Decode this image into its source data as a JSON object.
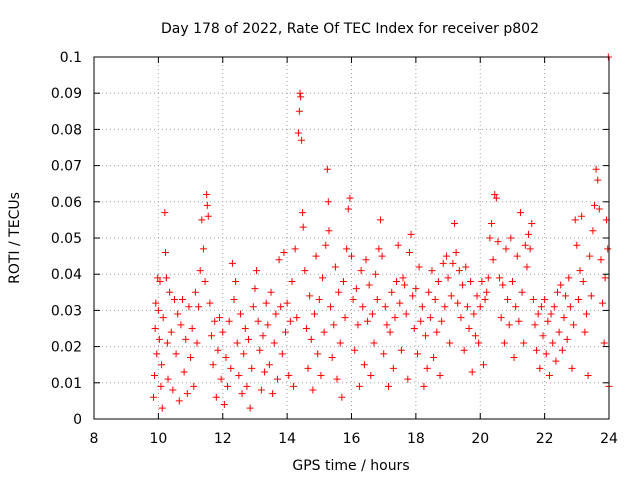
{
  "chart_data": {
    "type": "scatter",
    "title": "Day 178 of 2022, Rate Of TEC Index for receiver p802",
    "xlabel": "GPS time / hours",
    "ylabel": "ROTI / TECUs",
    "xlim": [
      8,
      24
    ],
    "ylim": [
      0,
      0.1
    ],
    "x_ticks": [
      "8",
      "10",
      "12",
      "14",
      "16",
      "18",
      "20",
      "22",
      "24"
    ],
    "y_ticks": [
      "0",
      "0.01",
      "0.02",
      "0.03",
      "0.04",
      "0.05",
      "0.06",
      "0.07",
      "0.08",
      "0.09",
      "0.1"
    ],
    "grid": true,
    "marker": "+",
    "color": "#ff0000",
    "series": [
      {
        "points": [
          [
            9.85,
            0.006
          ],
          [
            9.88,
            0.012
          ],
          [
            9.9,
            0.025
          ],
          [
            9.92,
            0.032
          ],
          [
            9.95,
            0.018
          ],
          [
            9.98,
            0.039
          ],
          [
            10.0,
            0.03
          ],
          [
            10.03,
            0.022
          ],
          [
            10.05,
            0.038
          ],
          [
            10.08,
            0.009
          ],
          [
            10.1,
            0.015
          ],
          [
            10.12,
            0.003
          ],
          [
            10.15,
            0.028
          ],
          [
            10.2,
            0.057
          ],
          [
            10.22,
            0.046
          ],
          [
            10.25,
            0.039
          ],
          [
            10.28,
            0.021
          ],
          [
            10.3,
            0.011
          ],
          [
            10.35,
            0.035
          ],
          [
            10.4,
            0.024
          ],
          [
            10.45,
            0.008
          ],
          [
            10.5,
            0.033
          ],
          [
            10.55,
            0.018
          ],
          [
            10.6,
            0.029
          ],
          [
            10.65,
            0.005
          ],
          [
            10.7,
            0.026
          ],
          [
            10.75,
            0.033
          ],
          [
            10.8,
            0.013
          ],
          [
            10.85,
            0.022
          ],
          [
            10.9,
            0.007
          ],
          [
            10.95,
            0.031
          ],
          [
            11.0,
            0.017
          ],
          [
            11.05,
            0.025
          ],
          [
            11.1,
            0.009
          ],
          [
            11.15,
            0.035
          ],
          [
            11.2,
            0.021
          ],
          [
            11.25,
            0.031
          ],
          [
            11.3,
            0.041
          ],
          [
            11.35,
            0.055
          ],
          [
            11.4,
            0.047
          ],
          [
            11.45,
            0.038
          ],
          [
            11.5,
            0.062
          ],
          [
            11.52,
            0.059
          ],
          [
            11.55,
            0.056
          ],
          [
            11.6,
            0.032
          ],
          [
            11.65,
            0.023
          ],
          [
            11.7,
            0.015
          ],
          [
            11.75,
            0.027
          ],
          [
            11.8,
            0.006
          ],
          [
            11.85,
            0.019
          ],
          [
            11.9,
            0.028
          ],
          [
            11.95,
            0.011
          ],
          [
            12.0,
            0.024
          ],
          [
            12.05,
            0.004
          ],
          [
            12.1,
            0.017
          ],
          [
            12.15,
            0.009
          ],
          [
            12.2,
            0.027
          ],
          [
            12.25,
            0.014
          ],
          [
            12.3,
            0.043
          ],
          [
            12.35,
            0.033
          ],
          [
            12.4,
            0.038
          ],
          [
            12.45,
            0.021
          ],
          [
            12.5,
            0.012
          ],
          [
            12.55,
            0.029
          ],
          [
            12.6,
            0.007
          ],
          [
            12.65,
            0.018
          ],
          [
            12.7,
            0.025
          ],
          [
            12.75,
            0.009
          ],
          [
            12.8,
            0.022
          ],
          [
            12.85,
            0.003
          ],
          [
            12.9,
            0.014
          ],
          [
            12.95,
            0.031
          ],
          [
            13.0,
            0.036
          ],
          [
            13.05,
            0.041
          ],
          [
            13.1,
            0.027
          ],
          [
            13.15,
            0.019
          ],
          [
            13.2,
            0.008
          ],
          [
            13.25,
            0.023
          ],
          [
            13.3,
            0.013
          ],
          [
            13.35,
            0.032
          ],
          [
            13.4,
            0.026
          ],
          [
            13.45,
            0.015
          ],
          [
            13.5,
            0.035
          ],
          [
            13.55,
            0.007
          ],
          [
            13.6,
            0.021
          ],
          [
            13.65,
            0.029
          ],
          [
            13.7,
            0.011
          ],
          [
            13.75,
            0.044
          ],
          [
            13.8,
            0.031
          ],
          [
            13.85,
            0.018
          ],
          [
            13.9,
            0.046
          ],
          [
            13.95,
            0.024
          ],
          [
            14.0,
            0.032
          ],
          [
            14.05,
            0.012
          ],
          [
            14.1,
            0.027
          ],
          [
            14.15,
            0.038
          ],
          [
            14.2,
            0.009
          ],
          [
            14.25,
            0.047
          ],
          [
            14.3,
            0.028
          ],
          [
            14.35,
            0.079
          ],
          [
            14.38,
            0.085
          ],
          [
            14.4,
            0.09
          ],
          [
            14.42,
            0.089
          ],
          [
            14.45,
            0.077
          ],
          [
            14.48,
            0.057
          ],
          [
            14.5,
            0.053
          ],
          [
            14.55,
            0.041
          ],
          [
            14.6,
            0.025
          ],
          [
            14.65,
            0.014
          ],
          [
            14.7,
            0.034
          ],
          [
            14.75,
            0.022
          ],
          [
            14.8,
            0.008
          ],
          [
            14.85,
            0.029
          ],
          [
            14.9,
            0.045
          ],
          [
            14.95,
            0.018
          ],
          [
            15.0,
            0.033
          ],
          [
            15.05,
            0.012
          ],
          [
            15.1,
            0.039
          ],
          [
            15.15,
            0.024
          ],
          [
            15.2,
            0.048
          ],
          [
            15.25,
            0.069
          ],
          [
            15.28,
            0.06
          ],
          [
            15.3,
            0.052
          ],
          [
            15.35,
            0.031
          ],
          [
            15.4,
            0.017
          ],
          [
            15.45,
            0.026
          ],
          [
            15.5,
            0.042
          ],
          [
            15.55,
            0.011
          ],
          [
            15.6,
            0.035
          ],
          [
            15.65,
            0.021
          ],
          [
            15.7,
            0.006
          ],
          [
            15.75,
            0.038
          ],
          [
            15.8,
            0.028
          ],
          [
            15.85,
            0.047
          ],
          [
            15.9,
            0.058
          ],
          [
            15.95,
            0.061
          ],
          [
            16.0,
            0.045
          ],
          [
            16.05,
            0.033
          ],
          [
            16.1,
            0.019
          ],
          [
            16.15,
            0.036
          ],
          [
            16.2,
            0.026
          ],
          [
            16.25,
            0.009
          ],
          [
            16.3,
            0.041
          ],
          [
            16.35,
            0.031
          ],
          [
            16.4,
            0.015
          ],
          [
            16.45,
            0.044
          ],
          [
            16.5,
            0.027
          ],
          [
            16.55,
            0.037
          ],
          [
            16.6,
            0.012
          ],
          [
            16.65,
            0.029
          ],
          [
            16.7,
            0.021
          ],
          [
            16.75,
            0.04
          ],
          [
            16.8,
            0.033
          ],
          [
            16.85,
            0.047
          ],
          [
            16.9,
            0.055
          ],
          [
            16.95,
            0.045
          ],
          [
            17.0,
            0.018
          ],
          [
            17.05,
            0.031
          ],
          [
            17.1,
            0.026
          ],
          [
            17.15,
            0.009
          ],
          [
            17.2,
            0.024
          ],
          [
            17.25,
            0.035
          ],
          [
            17.3,
            0.014
          ],
          [
            17.35,
            0.028
          ],
          [
            17.4,
            0.038
          ],
          [
            17.45,
            0.048
          ],
          [
            17.5,
            0.032
          ],
          [
            17.55,
            0.019
          ],
          [
            17.6,
            0.039
          ],
          [
            17.65,
            0.037
          ],
          [
            17.7,
            0.029
          ],
          [
            17.75,
            0.011
          ],
          [
            17.8,
            0.046
          ],
          [
            17.85,
            0.051
          ],
          [
            17.9,
            0.034
          ],
          [
            17.95,
            0.025
          ],
          [
            18.0,
            0.036
          ],
          [
            18.05,
            0.018
          ],
          [
            18.1,
            0.042
          ],
          [
            18.15,
            0.027
          ],
          [
            18.2,
            0.031
          ],
          [
            18.25,
            0.009
          ],
          [
            18.3,
            0.023
          ],
          [
            18.35,
            0.014
          ],
          [
            18.4,
            0.035
          ],
          [
            18.45,
            0.028
          ],
          [
            18.5,
            0.041
          ],
          [
            18.55,
            0.017
          ],
          [
            18.6,
            0.033
          ],
          [
            18.65,
            0.024
          ],
          [
            18.7,
            0.038
          ],
          [
            18.75,
            0.012
          ],
          [
            18.8,
            0.027
          ],
          [
            18.85,
            0.043
          ],
          [
            18.9,
            0.031
          ],
          [
            18.95,
            0.045
          ],
          [
            19.0,
            0.039
          ],
          [
            19.05,
            0.021
          ],
          [
            19.1,
            0.034
          ],
          [
            19.15,
            0.043
          ],
          [
            19.2,
            0.054
          ],
          [
            19.25,
            0.046
          ],
          [
            19.3,
            0.032
          ],
          [
            19.35,
            0.041
          ],
          [
            19.4,
            0.028
          ],
          [
            19.45,
            0.037
          ],
          [
            19.5,
            0.019
          ],
          [
            19.55,
            0.042
          ],
          [
            19.6,
            0.031
          ],
          [
            19.65,
            0.025
          ],
          [
            19.7,
            0.038
          ],
          [
            19.75,
            0.013
          ],
          [
            19.8,
            0.029
          ],
          [
            19.85,
            0.023
          ],
          [
            19.9,
            0.034
          ],
          [
            19.95,
            0.021
          ],
          [
            20.0,
            0.031
          ],
          [
            20.05,
            0.038
          ],
          [
            20.1,
            0.015
          ],
          [
            20.15,
            0.033
          ],
          [
            20.2,
            0.035
          ],
          [
            20.25,
            0.039
          ],
          [
            20.3,
            0.05
          ],
          [
            20.35,
            0.054
          ],
          [
            20.4,
            0.044
          ],
          [
            20.45,
            0.062
          ],
          [
            20.5,
            0.061
          ],
          [
            20.55,
            0.049
          ],
          [
            20.6,
            0.039
          ],
          [
            20.65,
            0.028
          ],
          [
            20.7,
            0.037
          ],
          [
            20.75,
            0.021
          ],
          [
            20.8,
            0.047
          ],
          [
            20.85,
            0.033
          ],
          [
            20.9,
            0.026
          ],
          [
            20.95,
            0.05
          ],
          [
            21.0,
            0.038
          ],
          [
            21.05,
            0.017
          ],
          [
            21.1,
            0.031
          ],
          [
            21.15,
            0.045
          ],
          [
            21.2,
            0.027
          ],
          [
            21.25,
            0.057
          ],
          [
            21.3,
            0.035
          ],
          [
            21.35,
            0.021
          ],
          [
            21.4,
            0.048
          ],
          [
            21.45,
            0.042
          ],
          [
            21.5,
            0.051
          ],
          [
            21.55,
            0.047
          ],
          [
            21.6,
            0.054
          ],
          [
            21.65,
            0.033
          ],
          [
            21.7,
            0.026
          ],
          [
            21.75,
            0.019
          ],
          [
            21.8,
            0.029
          ],
          [
            21.85,
            0.014
          ],
          [
            21.9,
            0.031
          ],
          [
            21.95,
            0.023
          ],
          [
            22.0,
            0.033
          ],
          [
            22.05,
            0.018
          ],
          [
            22.1,
            0.027
          ],
          [
            22.15,
            0.012
          ],
          [
            22.2,
            0.029
          ],
          [
            22.25,
            0.021
          ],
          [
            22.3,
            0.031
          ],
          [
            22.35,
            0.016
          ],
          [
            22.4,
            0.035
          ],
          [
            22.45,
            0.024
          ],
          [
            22.5,
            0.037
          ],
          [
            22.55,
            0.019
          ],
          [
            22.6,
            0.028
          ],
          [
            22.65,
            0.034
          ],
          [
            22.7,
            0.022
          ],
          [
            22.75,
            0.039
          ],
          [
            22.8,
            0.031
          ],
          [
            22.85,
            0.014
          ],
          [
            22.9,
            0.026
          ],
          [
            22.95,
            0.055
          ],
          [
            23.0,
            0.048
          ],
          [
            23.05,
            0.033
          ],
          [
            23.1,
            0.041
          ],
          [
            23.15,
            0.056
          ],
          [
            23.2,
            0.038
          ],
          [
            23.25,
            0.024
          ],
          [
            23.3,
            0.029
          ],
          [
            23.35,
            0.012
          ],
          [
            23.4,
            0.045
          ],
          [
            23.45,
            0.034
          ],
          [
            23.5,
            0.052
          ],
          [
            23.55,
            0.059
          ],
          [
            23.6,
            0.069
          ],
          [
            23.65,
            0.066
          ],
          [
            23.7,
            0.058
          ],
          [
            23.75,
            0.044
          ],
          [
            23.8,
            0.032
          ],
          [
            23.85,
            0.021
          ],
          [
            23.88,
            0.039
          ],
          [
            23.92,
            0.055
          ],
          [
            23.96,
            0.047
          ],
          [
            23.98,
            0.1
          ],
          [
            24.0,
            0.009
          ]
        ]
      }
    ]
  }
}
